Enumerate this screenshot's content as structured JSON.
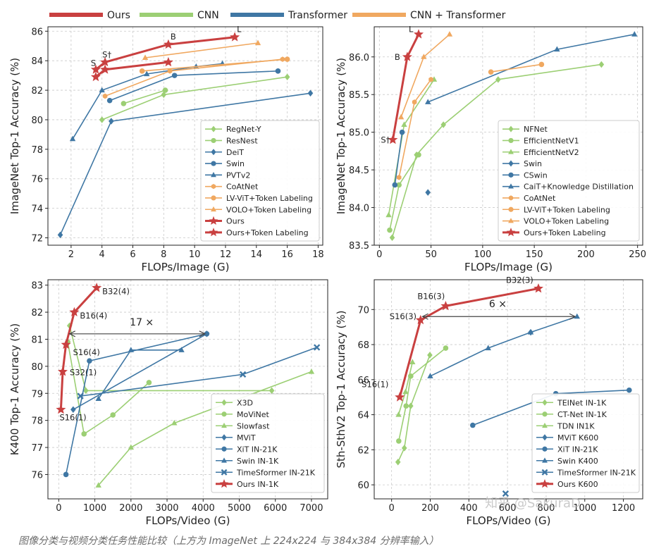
{
  "caption": "图像分类与视频分类任务性能比较（上方为 ImageNet 上 224x224 与 384x384 分辨率输入）",
  "watermark": "知乎 @SakuraD",
  "colors": {
    "ours": "#c94040",
    "cnn": "#9ccf74",
    "transformer": "#3f77a4",
    "hybrid": "#f0a860",
    "grid": "#c9c9c9",
    "frame": "#222222",
    "text": "#222222"
  },
  "legend_top": [
    {
      "label": "Ours",
      "color": "#c94040"
    },
    {
      "label": "CNN",
      "color": "#9ccf74"
    },
    {
      "label": "Transformer",
      "color": "#3f77a4"
    },
    {
      "label": "CNN + Transformer",
      "color": "#f0a860"
    }
  ],
  "chart_data": [
    {
      "type": "line",
      "id": "tl",
      "xlabel": "FLOPs/Image (G)",
      "ylabel": "ImageNet Top-1 Accuracy (%)",
      "xlim": [
        0.5,
        18.3
      ],
      "ylim": [
        71.5,
        86.3
      ],
      "xticks": [
        2,
        4,
        6,
        8,
        10,
        12,
        14,
        16,
        18
      ],
      "yticks": [
        72,
        74,
        76,
        78,
        80,
        82,
        84,
        86
      ],
      "legend_position": "bottom-right",
      "series": [
        {
          "name": "RegNet-Y",
          "color": "#9ccf74",
          "marker": "diamond",
          "x": [
            4.0,
            8.0,
            16.0
          ],
          "y": [
            80.0,
            81.7,
            82.9
          ]
        },
        {
          "name": "ResNest",
          "color": "#9ccf74",
          "marker": "circle",
          "x": [
            5.4,
            8.1
          ],
          "y": [
            81.1,
            82.0
          ]
        },
        {
          "name": "DeiT",
          "color": "#3f77a4",
          "marker": "diamond",
          "x": [
            1.3,
            4.6,
            17.5
          ],
          "y": [
            72.2,
            79.9,
            81.8
          ]
        },
        {
          "name": "Swin",
          "color": "#3f77a4",
          "marker": "circle",
          "x": [
            4.5,
            8.7,
            15.4
          ],
          "y": [
            81.3,
            83.0,
            83.3
          ]
        },
        {
          "name": "PVTv2",
          "color": "#3f77a4",
          "marker": "triangle",
          "x": [
            2.1,
            4.0,
            6.9,
            10.1,
            11.8
          ],
          "y": [
            78.7,
            82.0,
            83.1,
            83.6,
            83.8
          ]
        },
        {
          "name": "CoAtNet",
          "color": "#f0a860",
          "marker": "hexagon",
          "x": [
            4.2,
            8.4,
            15.7
          ],
          "y": [
            81.6,
            83.3,
            84.1
          ]
        },
        {
          "name": "LV-ViT+Token Labeling",
          "color": "#f0a860",
          "marker": "circle",
          "x": [
            6.6,
            16.0
          ],
          "y": [
            83.3,
            84.1
          ]
        },
        {
          "name": "VOLO+Token Labeling",
          "color": "#f0a860",
          "marker": "triangle",
          "x": [
            6.8,
            14.1
          ],
          "y": [
            84.2,
            85.2
          ]
        },
        {
          "name": "Ours",
          "color": "#c94040",
          "marker": "star",
          "x": [
            3.6,
            4.2,
            8.3
          ],
          "y": [
            82.9,
            83.4,
            83.9
          ]
        },
        {
          "name": "Ours+Token Labeling",
          "color": "#c94040",
          "marker": "star",
          "x": [
            3.6,
            4.2,
            8.3,
            12.6
          ],
          "y": [
            83.4,
            83.9,
            85.1,
            85.6
          ]
        }
      ],
      "annotations": [
        {
          "text": "S",
          "x": 3.6,
          "y": 83.4
        },
        {
          "text": "S†",
          "x": 4.2,
          "y": 83.9
        },
        {
          "text": "B",
          "x": 8.3,
          "y": 85.1
        },
        {
          "text": "L",
          "x": 12.6,
          "y": 85.6
        }
      ]
    },
    {
      "type": "line",
      "id": "tr",
      "xlabel": "FLOPs/Image (G)",
      "ylabel": "ImageNet Top-1 Accuracy (%)",
      "xlim": [
        -5,
        255
      ],
      "ylim": [
        83.5,
        86.4
      ],
      "xticks": [
        0,
        50,
        100,
        150,
        200,
        250
      ],
      "yticks": [
        83.5,
        84.0,
        84.5,
        85.0,
        85.5,
        86.0
      ],
      "legend_position": "bottom-right",
      "series": [
        {
          "name": "NFNet",
          "color": "#9ccf74",
          "marker": "diamond",
          "x": [
            12.4,
            36,
            62,
            115,
            215
          ],
          "y": [
            83.6,
            84.7,
            85.1,
            85.7,
            85.9
          ]
        },
        {
          "name": "EfficientNetV1",
          "color": "#9ccf74",
          "marker": "circle",
          "x": [
            10,
            19,
            38
          ],
          "y": [
            83.7,
            84.3,
            84.7
          ]
        },
        {
          "name": "EfficientNetV2",
          "color": "#9ccf74",
          "marker": "triangle",
          "x": [
            9,
            24,
            53
          ],
          "y": [
            83.9,
            85.1,
            85.7
          ]
        },
        {
          "name": "Swin",
          "color": "#3f77a4",
          "marker": "diamond",
          "x": [
            47
          ],
          "y": [
            84.2
          ]
        },
        {
          "name": "CSwin",
          "color": "#3f77a4",
          "marker": "circle",
          "x": [
            15,
            22
          ],
          "y": [
            84.3,
            85.0
          ]
        },
        {
          "name": "CaiT+Knowledge Distillation",
          "color": "#3f77a4",
          "marker": "triangle",
          "x": [
            47,
            172,
            247
          ],
          "y": [
            85.4,
            86.1,
            86.3
          ]
        },
        {
          "name": "CoAtNet",
          "color": "#f0a860",
          "marker": "hexagon",
          "x": [
            19,
            34,
            50
          ],
          "y": [
            84.4,
            85.4,
            85.7
          ]
        },
        {
          "name": "LV-ViT+Token Labeling",
          "color": "#f0a860",
          "marker": "circle",
          "x": [
            108,
            157
          ],
          "y": [
            85.8,
            85.9
          ]
        },
        {
          "name": "VOLO+Token Labeling",
          "color": "#f0a860",
          "marker": "triangle",
          "x": [
            21,
            43,
            68
          ],
          "y": [
            85.2,
            86.0,
            86.3
          ]
        },
        {
          "name": "Ours+Token Labeling",
          "color": "#c94040",
          "marker": "star",
          "x": [
            13,
            27,
            38
          ],
          "y": [
            84.9,
            86.0,
            86.3
          ]
        }
      ],
      "annotations": [
        {
          "text": "S†",
          "x": 13,
          "y": 84.9
        },
        {
          "text": "B",
          "x": 27,
          "y": 86.0
        },
        {
          "text": "L",
          "x": 38,
          "y": 86.3
        }
      ]
    },
    {
      "type": "line",
      "id": "bl",
      "xlabel": "FLOPs/Video (G)",
      "ylabel": "K400 Top-1 Accuracy (%)",
      "xlim": [
        -300,
        7450
      ],
      "ylim": [
        75.1,
        83.2
      ],
      "xticks": [
        0,
        1000,
        2000,
        3000,
        4000,
        5000,
        6000,
        7000
      ],
      "yticks": [
        76,
        77,
        78,
        79,
        80,
        81,
        82,
        83
      ],
      "legend_position": "bottom-right",
      "series": [
        {
          "name": "X3D",
          "color": "#9ccf74",
          "marker": "diamond",
          "x": [
            300,
            750,
            5900
          ],
          "y": [
            81.5,
            79.1,
            79.1
          ]
        },
        {
          "name": "MoViNet",
          "color": "#9ccf74",
          "marker": "circle",
          "x": [
            250,
            700,
            1500,
            2500
          ],
          "y": [
            80.9,
            77.5,
            78.2,
            79.4
          ]
        },
        {
          "name": "Slowfast",
          "color": "#9ccf74",
          "marker": "triangle",
          "x": [
            1100,
            2000,
            3200,
            7000
          ],
          "y": [
            75.6,
            77.0,
            77.9,
            79.8
          ]
        },
        {
          "name": "MViT",
          "color": "#3f77a4",
          "marker": "diamond",
          "x": [
            400,
            4100
          ],
          "y": [
            78.4,
            81.2
          ]
        },
        {
          "name": "XiT IN-21K",
          "color": "#3f77a4",
          "marker": "circle",
          "x": [
            200,
            850,
            4100
          ],
          "y": [
            76.0,
            80.2,
            81.2
          ]
        },
        {
          "name": "Swin IN-1K",
          "color": "#3f77a4",
          "marker": "triangle",
          "x": [
            1100,
            2000,
            3400
          ],
          "y": [
            78.8,
            80.6,
            80.6
          ]
        },
        {
          "name": "TimeSformer IN-21K",
          "color": "#3f77a4",
          "marker": "x",
          "x": [
            600,
            5100,
            7150
          ],
          "y": [
            78.9,
            79.7,
            80.7
          ]
        },
        {
          "name": "Ours IN-1K",
          "color": "#c94040",
          "marker": "star",
          "x": [
            60,
            110,
            200,
            430,
            1050
          ],
          "y": [
            78.4,
            79.8,
            80.8,
            82.0,
            82.9
          ]
        }
      ],
      "annotations": [
        {
          "text": "S16(1)",
          "x": 60,
          "y": 78.4
        },
        {
          "text": "S32(1)",
          "x": 110,
          "y": 79.8
        },
        {
          "text": "S16(4)",
          "x": 200,
          "y": 80.8
        },
        {
          "text": "B16(4)",
          "x": 430,
          "y": 82.0
        },
        {
          "text": "B32(4)",
          "x": 1050,
          "y": 82.9
        },
        {
          "text": "17 ×",
          "x": 2300,
          "y": 81.3
        }
      ]
    },
    {
      "type": "line",
      "id": "br",
      "xlabel": "FLOPs/Video (G)",
      "ylabel": "Sth-SthV2 Top-1 Accuracy (%)",
      "xlim": [
        -90,
        1300
      ],
      "ylim": [
        59.2,
        71.7
      ],
      "xticks": [
        0,
        200,
        400,
        600,
        800,
        1000,
        1200
      ],
      "yticks": [
        60,
        62,
        64,
        66,
        68,
        70
      ],
      "legend_position": "bottom-right",
      "series": [
        {
          "name": "TEINet IN-1K",
          "color": "#9ccf74",
          "marker": "diamond",
          "x": [
            33,
            66,
            99,
            198
          ],
          "y": [
            61.3,
            62.1,
            64.5,
            67.4
          ]
        },
        {
          "name": "CT-Net IN-1K",
          "color": "#9ccf74",
          "marker": "circle",
          "x": [
            37,
            75,
            99,
            280
          ],
          "y": [
            62.5,
            64.5,
            66.2,
            67.8
          ]
        },
        {
          "name": "TDN IN1K",
          "color": "#9ccf74",
          "marker": "triangle",
          "x": [
            36,
            72,
            108
          ],
          "y": [
            64.0,
            65.3,
            67.0
          ]
        },
        {
          "name": "MViT K600",
          "color": "#3f77a4",
          "marker": "diamond",
          "x": [
            720
          ],
          "y": [
            68.7
          ]
        },
        {
          "name": "XiT IN-21K",
          "color": "#3f77a4",
          "marker": "circle",
          "x": [
            420,
            850,
            1230
          ],
          "y": [
            63.4,
            65.2,
            65.4
          ]
        },
        {
          "name": "Swin K400",
          "color": "#3f77a4",
          "marker": "triangle",
          "x": [
            200,
            500,
            720,
            960
          ],
          "y": [
            66.2,
            67.8,
            68.7,
            69.6
          ]
        },
        {
          "name": "TimeSformer IN-21K",
          "color": "#3f77a4",
          "marker": "x",
          "x": [
            590
          ],
          "y": [
            59.5
          ]
        },
        {
          "name": "Ours K600",
          "color": "#c94040",
          "marker": "star",
          "x": [
            42,
            150,
            280,
            760
          ],
          "y": [
            65.0,
            69.4,
            70.2,
            71.2
          ]
        }
      ],
      "annotations": [
        {
          "text": "S16(1)",
          "x": 42,
          "y": 65.0
        },
        {
          "text": "S16(3)",
          "x": 150,
          "y": 69.4
        },
        {
          "text": "B16(3)",
          "x": 280,
          "y": 70.2
        },
        {
          "text": "B32(3)",
          "x": 760,
          "y": 71.2
        },
        {
          "text": "6 ×",
          "x": 550,
          "y": 69.9
        }
      ]
    }
  ]
}
